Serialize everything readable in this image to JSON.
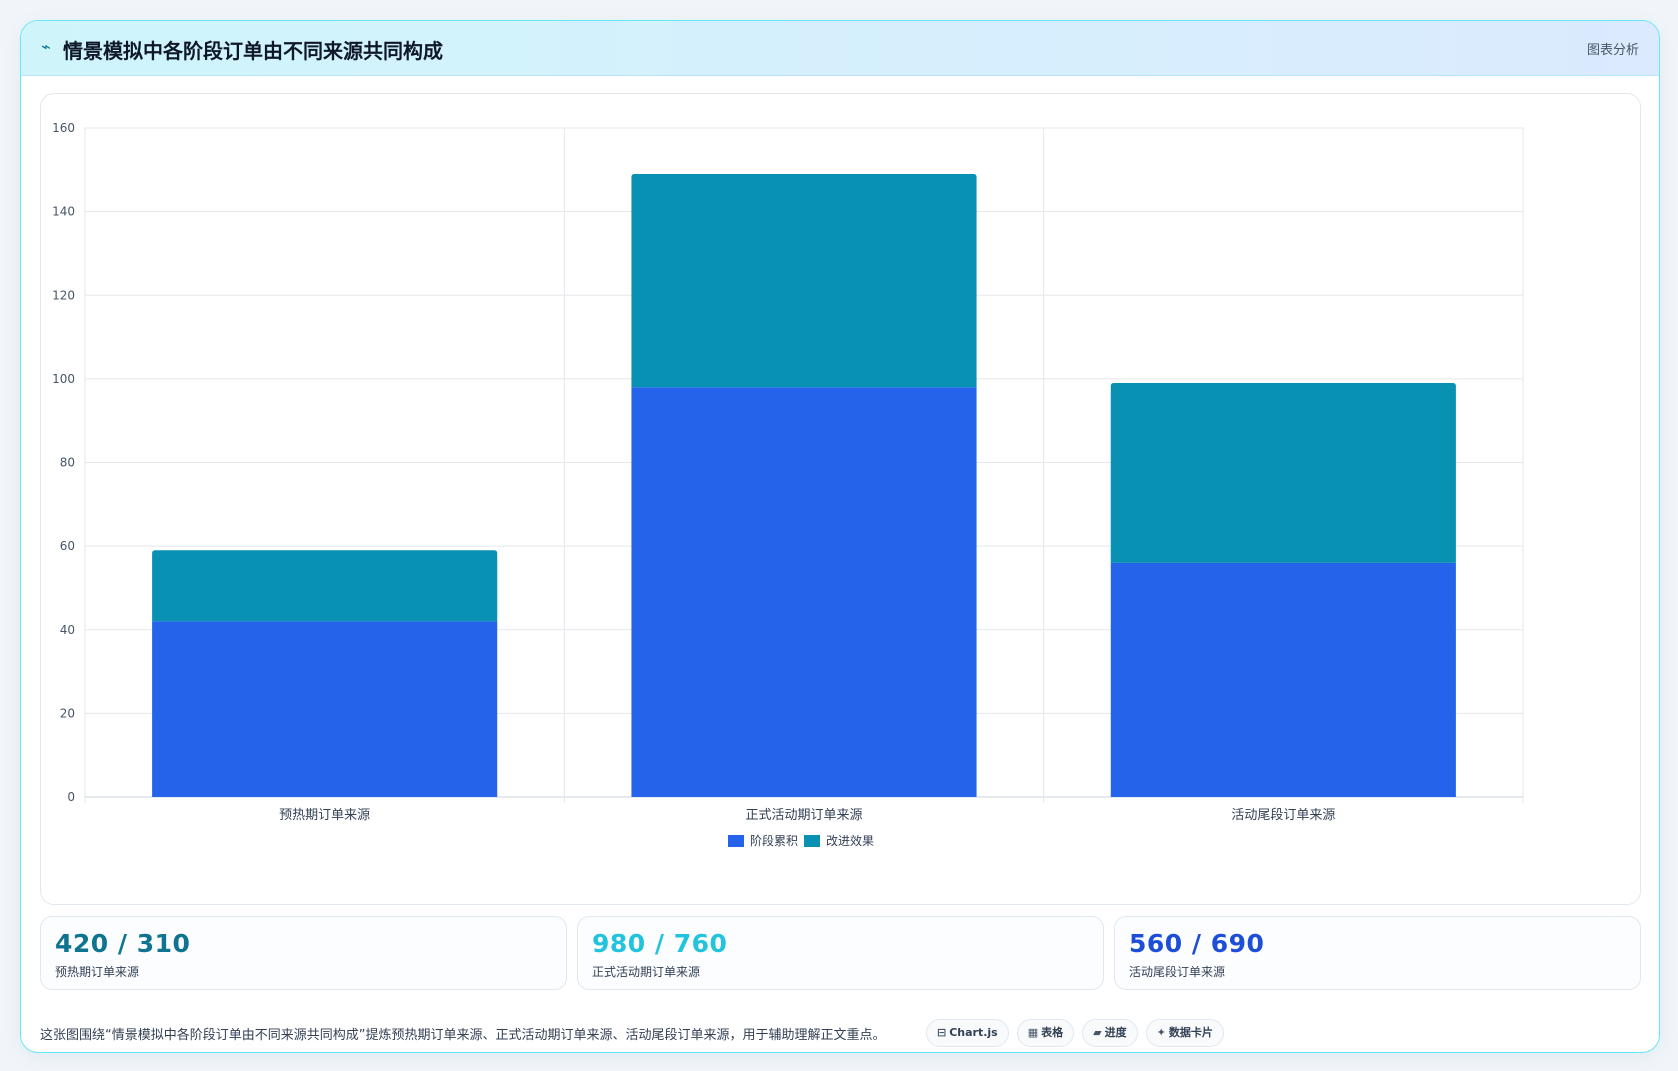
{
  "header": {
    "icon": "chart-line-icon",
    "icon_glyph": "⌁",
    "title": "情景模拟中各阶段订单由不同来源共同构成",
    "tag": "图表分析"
  },
  "chart_data": {
    "type": "bar",
    "stacked": true,
    "categories": [
      "预热期订单来源",
      "正式活动期订单来源",
      "活动尾段订单来源"
    ],
    "series": [
      {
        "name": "阶段累积",
        "values": [
          42,
          98,
          56
        ],
        "color": "#2563eb"
      },
      {
        "name": "改进效果",
        "values": [
          17,
          51,
          43
        ],
        "color": "#0891b2"
      }
    ],
    "ylim": [
      0,
      160
    ],
    "yticks": [
      0,
      20,
      40,
      60,
      80,
      100,
      120,
      140,
      160
    ],
    "grid": true,
    "legend_position": "bottom-center"
  },
  "stats": [
    {
      "value": "420 / 310",
      "label": "预热期订单来源",
      "color": "#0e7490"
    },
    {
      "value": "980 / 760",
      "label": "正式活动期订单来源",
      "color": "#22c3dc"
    },
    {
      "value": "560 / 690",
      "label": "活动尾段订单来源",
      "color": "#1d4ed8"
    }
  ],
  "footer": {
    "note": "这张图围绕“情景模拟中各阶段订单由不同来源共同构成”提炼预热期订单来源、正式活动期订单来源、活动尾段订单来源，用于辅助理解正文重点。",
    "chips": [
      {
        "icon": "chart-icon",
        "glyph": "⊟",
        "label": "Chart.js"
      },
      {
        "icon": "table-icon",
        "glyph": "▦",
        "label": "表格"
      },
      {
        "icon": "progress-icon",
        "glyph": "▰",
        "label": "进度"
      },
      {
        "icon": "sparkle-icon",
        "glyph": "✦",
        "label": "数据卡片"
      }
    ]
  }
}
